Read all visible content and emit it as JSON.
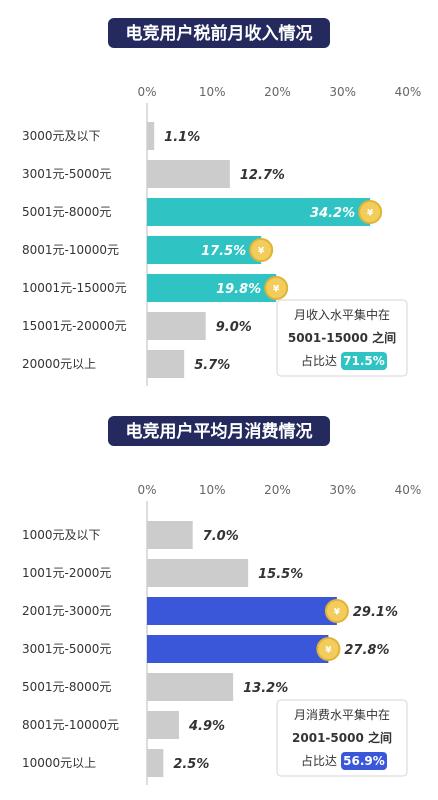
{
  "colors": {
    "title_bg": "#252a5e",
    "neutral_bar": "#cccccc",
    "income_highlight": "#2fc3c3",
    "spend_highlight": "#3b57d9",
    "coin": "#f2cd5c",
    "coin_edge": "#e0b338"
  },
  "coin_symbol": "¥",
  "chart_data": [
    {
      "type": "bar",
      "orientation": "horizontal",
      "title": "电竞用户税前月收入情况",
      "xlim": [
        0,
        40
      ],
      "ticks": [
        "0%",
        "10%",
        "20%",
        "30%",
        "40%"
      ],
      "categories": [
        "3000元及以下",
        "3001元-5000元",
        "5001元-8000元",
        "8001元-10000元",
        "10001元-15000元",
        "15001元-20000元",
        "20000元以上"
      ],
      "values": [
        1.1,
        12.7,
        34.2,
        17.5,
        19.8,
        9.0,
        5.7
      ],
      "labels": [
        "1.1%",
        "12.7%",
        "34.2%",
        "17.5%",
        "19.8%",
        "9.0%",
        "5.7%"
      ],
      "highlight": [
        2,
        3,
        4
      ],
      "annotation": {
        "line1": "月收入水平集中在",
        "line2": "5001-15000 之间",
        "line3_prefix": "占比达",
        "line3_value": "71.5%"
      }
    },
    {
      "type": "bar",
      "orientation": "horizontal",
      "title": "电竞用户平均月消费情况",
      "xlim": [
        0,
        40
      ],
      "ticks": [
        "0%",
        "10%",
        "20%",
        "30%",
        "40%"
      ],
      "categories": [
        "1000元及以下",
        "1001元-2000元",
        "2001元-3000元",
        "3001元-5000元",
        "5001元-8000元",
        "8001元-10000元",
        "10000元以上"
      ],
      "values": [
        7.0,
        15.5,
        29.1,
        27.8,
        13.2,
        4.9,
        2.5
      ],
      "labels": [
        "7.0%",
        "15.5%",
        "29.1%",
        "27.8%",
        "13.2%",
        "4.9%",
        "2.5%"
      ],
      "highlight": [
        2,
        3
      ],
      "annotation": {
        "line1": "月消费水平集中在",
        "line2": "2001-5000 之间",
        "line3_prefix": "占比达",
        "line3_value": "56.9%"
      }
    }
  ]
}
